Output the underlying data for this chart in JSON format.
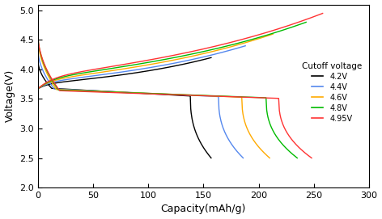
{
  "xlabel": "Capacity(mAh/g)",
  "ylabel": "Voltage(V)",
  "xlim": [
    0,
    300
  ],
  "ylim": [
    2.0,
    5.1
  ],
  "yticks": [
    2.0,
    2.5,
    3.0,
    3.5,
    4.0,
    4.5,
    5.0
  ],
  "xticks": [
    0,
    50,
    100,
    150,
    200,
    250,
    300
  ],
  "legend_title": "Cutoff voltage",
  "profiles": [
    {
      "label": "4.2V",
      "color": "#000000",
      "cutoff": 4.2,
      "charge_cap": 157,
      "discharge_start_v": 4.18,
      "discharge_plateau": 3.68,
      "discharge_end_cap": 157,
      "discharge_end_v": 2.5,
      "charge_start_v": 3.67
    },
    {
      "label": "4.4V",
      "color": "#5588ee",
      "cutoff": 4.4,
      "charge_cap": 188,
      "discharge_start_v": 4.37,
      "discharge_plateau": 3.67,
      "discharge_end_cap": 186,
      "discharge_end_v": 2.5,
      "charge_start_v": 3.67
    },
    {
      "label": "4.6V",
      "color": "#ffaa00",
      "cutoff": 4.6,
      "charge_cap": 213,
      "discharge_start_v": 4.58,
      "discharge_plateau": 3.66,
      "discharge_end_cap": 210,
      "discharge_end_v": 2.5,
      "charge_start_v": 3.67
    },
    {
      "label": "4.8V",
      "color": "#00bb00",
      "cutoff": 4.8,
      "charge_cap": 243,
      "discharge_start_v": 4.62,
      "discharge_plateau": 3.65,
      "discharge_end_cap": 235,
      "discharge_end_v": 2.5,
      "charge_start_v": 3.67
    },
    {
      "label": "4.95V",
      "color": "#ff3333",
      "cutoff": 4.95,
      "charge_cap": 258,
      "discharge_start_v": 4.63,
      "discharge_plateau": 3.64,
      "discharge_end_cap": 248,
      "discharge_end_v": 2.5,
      "charge_start_v": 3.67
    }
  ],
  "background_color": "#ffffff",
  "figsize": [
    4.72,
    2.71
  ],
  "dpi": 100
}
